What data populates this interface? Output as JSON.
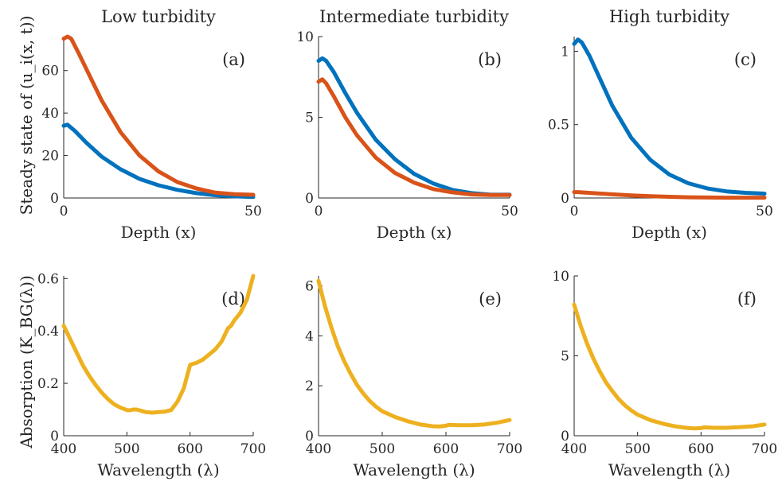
{
  "figure": {
    "row_ylabels": [
      "Steady state of (u_i(x, t))",
      "Absorption (K_BG(λ))"
    ],
    "row_xlabels": [
      "Depth (x)",
      "Wavelength (λ)"
    ]
  },
  "colors": {
    "series1": "#0072BD",
    "series2": "#D95319",
    "absorption": "#EDB120"
  },
  "chart_data": [
    {
      "panel": "(a)",
      "type": "line",
      "title": "Low turbidity",
      "xlabel": "Depth (x)",
      "ylabel": "Steady state of (u_i(x, t))",
      "xlim": [
        0,
        50
      ],
      "ylim": [
        0,
        76
      ],
      "xticks": [
        0,
        50
      ],
      "yticks": [
        0,
        20,
        40,
        60
      ],
      "series": [
        {
          "x": [
            0,
            1,
            3,
            6,
            10,
            15,
            20,
            25,
            30,
            35,
            40,
            45,
            50
          ],
          "y": [
            34,
            34.5,
            31.5,
            26,
            19.5,
            13.5,
            9,
            6,
            3.8,
            2.3,
            1.3,
            0.8,
            0.5
          ]
        },
        {
          "x": [
            0,
            1,
            2,
            4,
            7,
            10,
            15,
            20,
            25,
            30,
            35,
            40,
            45,
            50
          ],
          "y": [
            75,
            76,
            75,
            68,
            57,
            46,
            31,
            20,
            12.5,
            7.5,
            4.5,
            2.5,
            1.8,
            1.5
          ]
        }
      ]
    },
    {
      "panel": "(b)",
      "type": "line",
      "title": "Intermediate turbidity",
      "xlabel": "Depth (x)",
      "ylabel": "",
      "xlim": [
        0,
        50
      ],
      "ylim": [
        0,
        10
      ],
      "xticks": [
        0,
        50
      ],
      "yticks": [
        0,
        5,
        10
      ],
      "series": [
        {
          "x": [
            0,
            1,
            2,
            4,
            7,
            10,
            15,
            20,
            25,
            30,
            35,
            40,
            45,
            50
          ],
          "y": [
            8.5,
            8.65,
            8.5,
            7.8,
            6.5,
            5.3,
            3.6,
            2.4,
            1.5,
            0.9,
            0.5,
            0.3,
            0.2,
            0.2
          ]
        },
        {
          "x": [
            0,
            1,
            2,
            4,
            7,
            10,
            15,
            20,
            25,
            30,
            35,
            40,
            45,
            50
          ],
          "y": [
            7.2,
            7.35,
            7.1,
            6.3,
            5.0,
            3.9,
            2.5,
            1.55,
            0.95,
            0.55,
            0.35,
            0.22,
            0.18,
            0.18
          ]
        }
      ]
    },
    {
      "panel": "(c)",
      "type": "line",
      "title": "High turbidity",
      "xlabel": "Depth (x)",
      "ylabel": "",
      "xlim": [
        0,
        50
      ],
      "ylim": [
        0,
        1.1
      ],
      "xticks": [
        0,
        50
      ],
      "yticks": [
        0,
        0.5,
        1
      ],
      "series": [
        {
          "x": [
            0,
            1,
            2,
            4,
            7,
            10,
            15,
            20,
            25,
            30,
            35,
            40,
            45,
            50
          ],
          "y": [
            1.05,
            1.08,
            1.06,
            0.97,
            0.8,
            0.63,
            0.41,
            0.26,
            0.16,
            0.1,
            0.065,
            0.045,
            0.035,
            0.03
          ]
        },
        {
          "x": [
            0,
            1,
            5,
            10,
            15,
            20,
            25,
            30,
            35,
            40,
            45,
            50
          ],
          "y": [
            0.04,
            0.04,
            0.033,
            0.025,
            0.018,
            0.012,
            0.008,
            0.005,
            0.003,
            0.002,
            0.002,
            0.002
          ]
        }
      ]
    },
    {
      "panel": "(d)",
      "type": "line",
      "title": "",
      "xlabel": "Wavelength (λ)",
      "ylabel": "Absorption (K_BG(λ))",
      "xlim": [
        400,
        700
      ],
      "ylim": [
        0,
        0.61
      ],
      "xticks": [
        400,
        500,
        600,
        700
      ],
      "yticks": [
        0,
        0.2,
        0.4,
        0.6
      ],
      "series": [
        {
          "x": [
            400,
            410,
            420,
            430,
            440,
            450,
            460,
            470,
            480,
            490,
            500,
            505,
            510,
            515,
            520,
            530,
            540,
            550,
            560,
            570,
            580,
            590,
            600,
            605,
            610,
            620,
            630,
            640,
            650,
            660,
            665,
            670,
            680,
            690,
            700
          ],
          "y": [
            0.42,
            0.37,
            0.32,
            0.27,
            0.23,
            0.195,
            0.165,
            0.14,
            0.12,
            0.107,
            0.098,
            0.097,
            0.1,
            0.1,
            0.097,
            0.09,
            0.088,
            0.09,
            0.092,
            0.098,
            0.13,
            0.18,
            0.27,
            0.275,
            0.278,
            0.29,
            0.31,
            0.33,
            0.36,
            0.41,
            0.42,
            0.44,
            0.47,
            0.52,
            0.61
          ]
        }
      ]
    },
    {
      "panel": "(e)",
      "type": "line",
      "title": "",
      "xlabel": "Wavelength (λ)",
      "ylabel": "",
      "xlim": [
        400,
        700
      ],
      "ylim": [
        0,
        6.4
      ],
      "xticks": [
        400,
        500,
        600,
        700
      ],
      "yticks": [
        0,
        2,
        4,
        6
      ],
      "series": [
        {
          "x": [
            400,
            410,
            420,
            430,
            440,
            450,
            460,
            470,
            480,
            490,
            500,
            520,
            540,
            560,
            580,
            590,
            600,
            605,
            620,
            640,
            660,
            680,
            700
          ],
          "y": [
            6.2,
            5.2,
            4.35,
            3.6,
            3.0,
            2.5,
            2.05,
            1.7,
            1.4,
            1.17,
            0.98,
            0.75,
            0.58,
            0.45,
            0.38,
            0.37,
            0.4,
            0.44,
            0.42,
            0.42,
            0.45,
            0.52,
            0.63
          ]
        }
      ]
    },
    {
      "panel": "(f)",
      "type": "line",
      "title": "",
      "xlabel": "Wavelength (λ)",
      "ylabel": "",
      "xlim": [
        400,
        700
      ],
      "ylim": [
        0,
        10
      ],
      "xticks": [
        400,
        500,
        600,
        700
      ],
      "yticks": [
        0,
        5,
        10
      ],
      "series": [
        {
          "x": [
            400,
            410,
            420,
            430,
            440,
            450,
            460,
            470,
            480,
            490,
            500,
            520,
            540,
            560,
            580,
            590,
            600,
            605,
            620,
            640,
            660,
            680,
            700
          ],
          "y": [
            8.2,
            6.9,
            5.8,
            4.85,
            4.05,
            3.35,
            2.8,
            2.3,
            1.9,
            1.58,
            1.32,
            0.98,
            0.75,
            0.58,
            0.48,
            0.46,
            0.48,
            0.52,
            0.5,
            0.5,
            0.53,
            0.58,
            0.7
          ]
        }
      ]
    }
  ]
}
